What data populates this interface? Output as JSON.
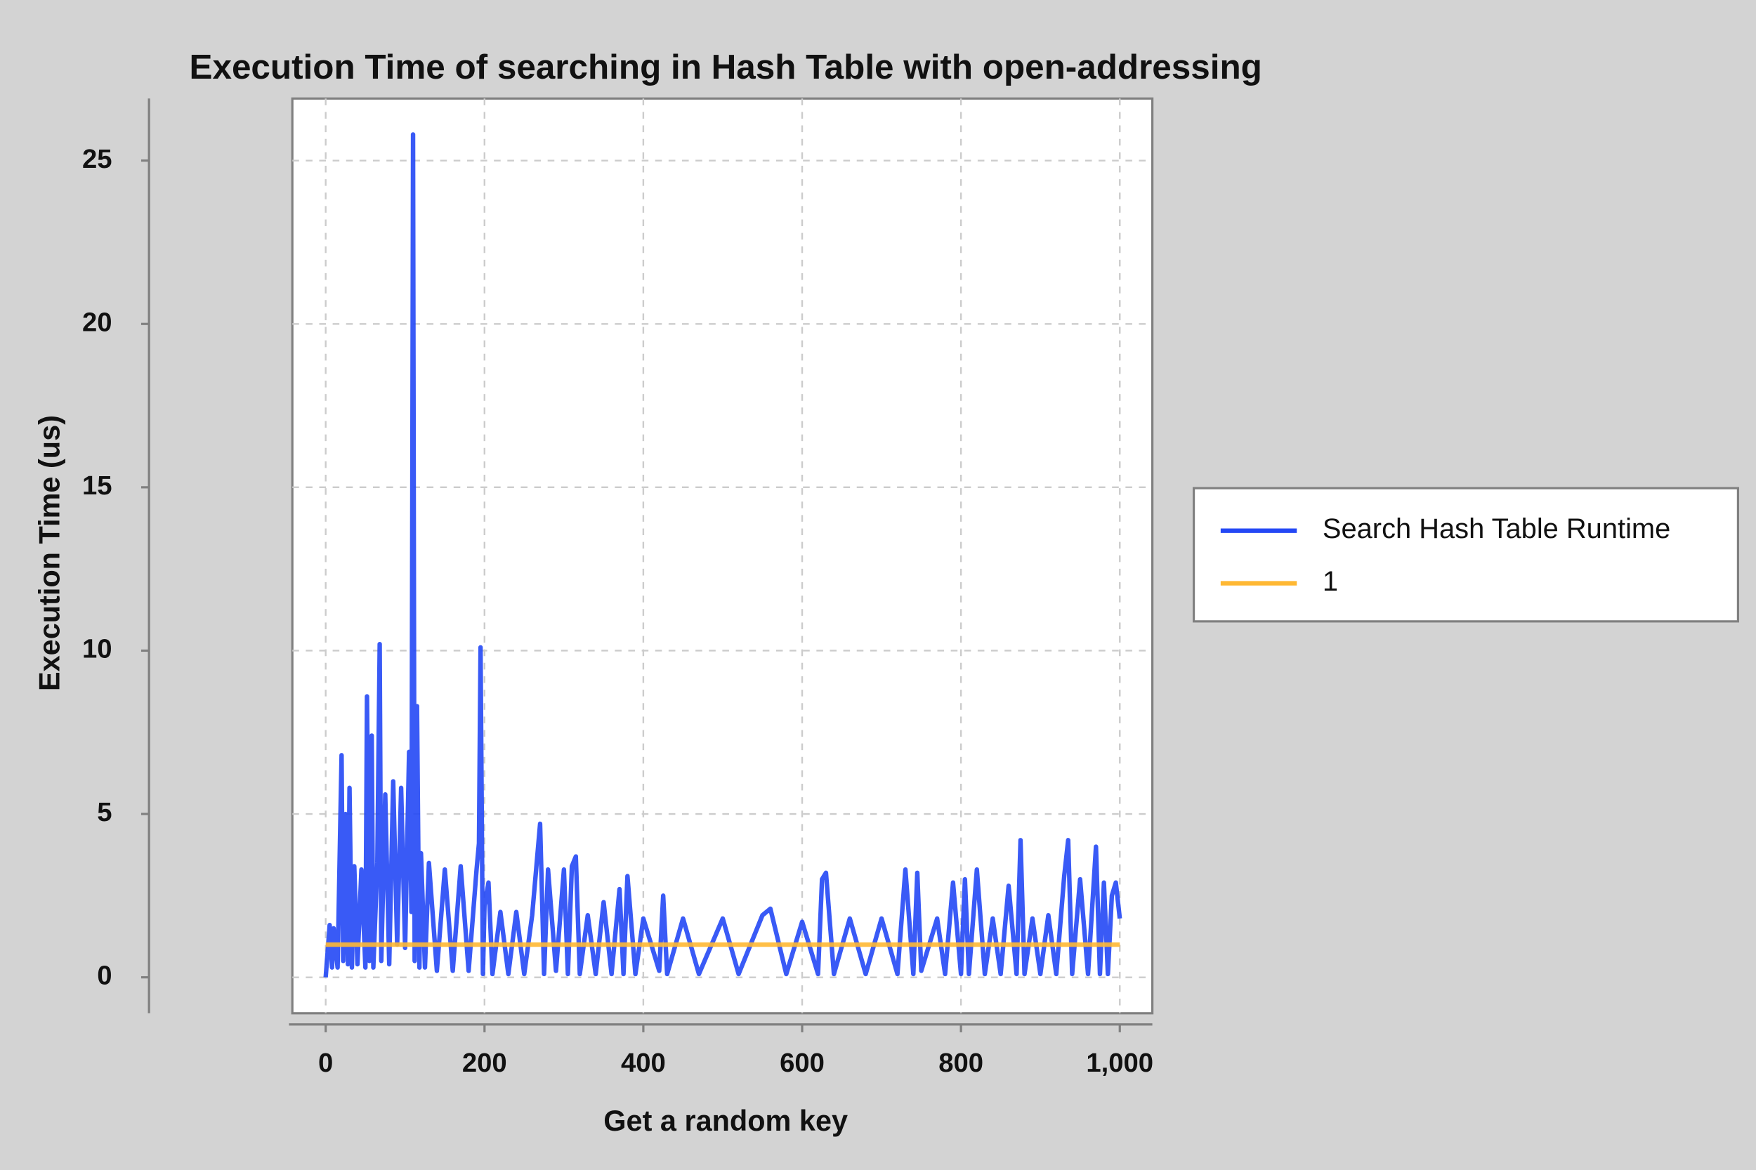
{
  "chart_data": {
    "type": "line",
    "title": "Execution Time of searching in Hash Table with open-addressing",
    "x_label": "Get a random key",
    "y_label": "Execution Time (us)",
    "xlim": [
      -42,
      1041
    ],
    "ylim": [
      -1.1,
      26.9
    ],
    "xticks": [
      0,
      200,
      400,
      600,
      800,
      {
        "value": 1000,
        "label": "1,000"
      }
    ],
    "yticks": [
      0,
      5,
      10,
      15,
      20,
      25
    ],
    "grid": true,
    "legend": "right",
    "series": [
      {
        "name": "Search Hash Table Runtime",
        "color": "#2448f5",
        "x": [
          0,
          5,
          8,
          10,
          15,
          20,
          22,
          25,
          28,
          30,
          33,
          36,
          40,
          45,
          50,
          52,
          55,
          58,
          60,
          65,
          68,
          70,
          75,
          80,
          85,
          90,
          95,
          100,
          105,
          108,
          110,
          112,
          115,
          118,
          120,
          125,
          130,
          140,
          150,
          160,
          170,
          180,
          190,
          193,
          195,
          198,
          200,
          205,
          210,
          220,
          230,
          240,
          250,
          260,
          265,
          270,
          275,
          280,
          290,
          300,
          305,
          310,
          315,
          320,
          330,
          340,
          350,
          360,
          370,
          375,
          380,
          390,
          400,
          420,
          425,
          430,
          450,
          470,
          500,
          520,
          550,
          560,
          580,
          600,
          620,
          625,
          630,
          640,
          660,
          680,
          700,
          720,
          730,
          740,
          745,
          750,
          770,
          780,
          790,
          800,
          805,
          810,
          820,
          830,
          840,
          850,
          860,
          870,
          875,
          880,
          890,
          900,
          910,
          920,
          930,
          935,
          940,
          950,
          960,
          970,
          975,
          980,
          985,
          990,
          995,
          1000
        ],
        "values": [
          0,
          1.6,
          0.3,
          1.5,
          0.3,
          6.8,
          0.5,
          5.0,
          0.4,
          5.8,
          0.3,
          3.4,
          0.4,
          3.3,
          0.3,
          8.6,
          0.5,
          7.4,
          0.3,
          3.5,
          10.2,
          0.5,
          5.6,
          0.4,
          6.0,
          1.0,
          5.8,
          0.9,
          6.9,
          2.0,
          25.8,
          0.5,
          8.3,
          0.3,
          3.8,
          0.3,
          3.5,
          0.2,
          3.3,
          0.2,
          3.4,
          0.2,
          3.3,
          4.1,
          10.1,
          0.1,
          2.2,
          2.9,
          0.1,
          2.0,
          0.1,
          2.0,
          0.1,
          1.9,
          3.3,
          4.7,
          0.1,
          3.3,
          0.2,
          3.3,
          0.1,
          3.4,
          3.7,
          0.1,
          1.9,
          0.1,
          2.3,
          0.1,
          2.7,
          0.1,
          3.1,
          0.1,
          1.8,
          0.2,
          2.5,
          0.1,
          1.8,
          0.1,
          1.8,
          0.1,
          1.9,
          2.1,
          0.1,
          1.7,
          0.1,
          3.0,
          3.2,
          0.1,
          1.8,
          0.1,
          1.8,
          0.1,
          3.3,
          0.1,
          3.2,
          0.2,
          1.8,
          0.1,
          2.9,
          0.1,
          3.0,
          0.1,
          3.3,
          0.1,
          1.8,
          0.1,
          2.8,
          0.1,
          4.2,
          0.1,
          1.8,
          0.1,
          1.9,
          0.1,
          3.1,
          4.2,
          0.1,
          3.0,
          0.1,
          4.0,
          0.1,
          2.9,
          0.1,
          2.5,
          2.9,
          1.8
        ]
      },
      {
        "name": "1",
        "color": "#ffb833",
        "x": [
          0,
          1000
        ],
        "values": [
          1,
          1
        ]
      }
    ]
  }
}
